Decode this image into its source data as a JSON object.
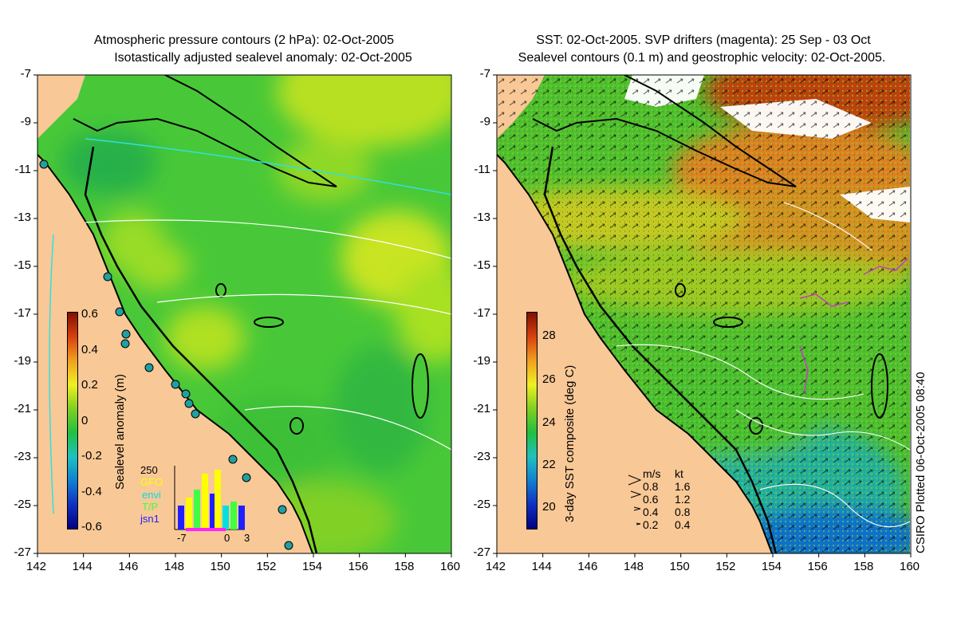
{
  "left_panel": {
    "title_line1": "Atmospheric pressure contours (2 hPa): 02-Oct-2005",
    "title_line2": "Isotastically adjusted sealevel anomaly: 02-Oct-2005",
    "colorbar_label": "Sealevel anomaly (m)",
    "colorbar_ticks": [
      "0.6",
      "0.4",
      "0.2",
      "0",
      "-0.2",
      "-0.4",
      "-0.6"
    ],
    "histogram": {
      "count_label": "250",
      "legend": [
        {
          "name": "GFO",
          "color": "#ffff00"
        },
        {
          "name": "envi",
          "color": "#00e0e0"
        },
        {
          "name": "T/P",
          "color": "#40ff40"
        },
        {
          "name": "jsn1",
          "color": "#2020ff"
        }
      ],
      "x_ticks": [
        "-7",
        "0",
        "3"
      ]
    }
  },
  "right_panel": {
    "title_line1": "SST: 02-Oct-2005. SVP drifters (magenta): 25 Sep - 03 Oct",
    "title_line2": "Sealevel contours (0.1 m) and geostrophic velocity: 02-Oct-2005.",
    "colorbar_label": "3-day SST composite (deg C)",
    "colorbar_ticks": [
      "28",
      "26",
      "24",
      "22",
      "20"
    ],
    "velocity_legend": {
      "header_ms": "m/s",
      "header_kt": "kt",
      "rows": [
        {
          "ms": "0.8",
          "kt": "1.6"
        },
        {
          "ms": "0.6",
          "kt": "1.2"
        },
        {
          "ms": "0.4",
          "kt": "0.8"
        },
        {
          "ms": "0.2",
          "kt": "0.4"
        }
      ]
    },
    "credit": "CSIRO Plotted 06-Oct-2005 08:40"
  },
  "axes": {
    "lat_ticks": [
      "-7",
      "-9",
      "-11",
      "-13",
      "-15",
      "-17",
      "-19",
      "-21",
      "-23",
      "-25",
      "-27"
    ],
    "lon_ticks": [
      "142",
      "144",
      "146",
      "148",
      "150",
      "152",
      "154",
      "156",
      "158",
      "160"
    ]
  },
  "colors": {
    "land": "#f8c896",
    "sla_base": "#40c830",
    "sst_warm": "#e07820",
    "sst_mid": "#60c030",
    "sst_cool": "#20b0a0",
    "coast": "#000000",
    "drifter": "#c040c0"
  }
}
